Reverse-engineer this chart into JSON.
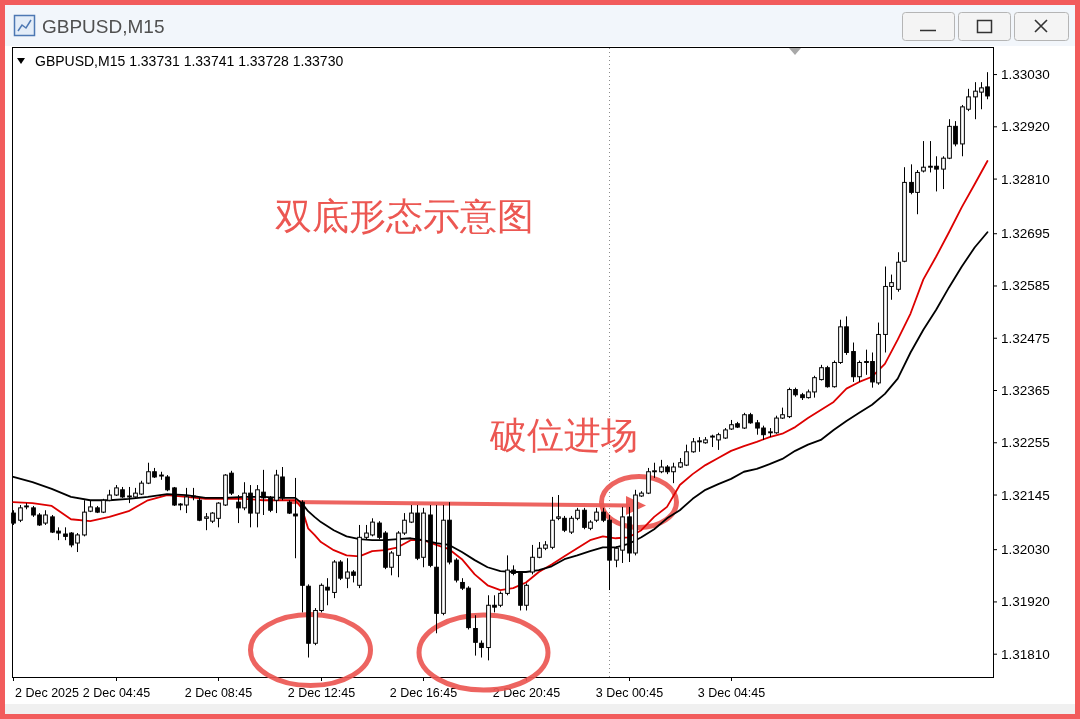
{
  "chart_data": {
    "type": "candlestick",
    "title": "GBPUSD,M15",
    "subtitle": "GBPUSD,M15 1.33731 1.33741 1.33728 1.33730",
    "annotations": [
      "双底形态示意图",
      "破位进场",
      "2 Dec 2025"
    ],
    "x": [
      "2025-12-02T00:45",
      "2025-12-02T01:00",
      "2025-12-02T01:15",
      "2025-12-02T01:30",
      "2025-12-02T01:45",
      "2025-12-02T02:00",
      "2025-12-02T02:15",
      "2025-12-02T02:30",
      "2025-12-02T02:45",
      "2025-12-02T03:00",
      "2025-12-02T03:15",
      "2025-12-02T03:30",
      "2025-12-02T03:45",
      "2025-12-02T04:00",
      "2025-12-02T04:15",
      "2025-12-02T04:30",
      "2025-12-02T04:45",
      "2025-12-02T05:00",
      "2025-12-02T05:15",
      "2025-12-02T05:30",
      "2025-12-02T05:45",
      "2025-12-02T06:00",
      "2025-12-02T06:15",
      "2025-12-02T06:30",
      "2025-12-02T06:45",
      "2025-12-02T07:00",
      "2025-12-02T07:15",
      "2025-12-02T07:30",
      "2025-12-02T07:45",
      "2025-12-02T08:00",
      "2025-12-02T08:15",
      "2025-12-02T08:30",
      "2025-12-02T08:45",
      "2025-12-02T09:00",
      "2025-12-02T09:15",
      "2025-12-02T09:30",
      "2025-12-02T09:45",
      "2025-12-02T10:00",
      "2025-12-02T10:15",
      "2025-12-02T10:30",
      "2025-12-02T10:45",
      "2025-12-02T11:00",
      "2025-12-02T11:15",
      "2025-12-02T11:30",
      "2025-12-02T11:45",
      "2025-12-02T12:00",
      "2025-12-02T12:15",
      "2025-12-02T12:30",
      "2025-12-02T12:45",
      "2025-12-02T13:00",
      "2025-12-02T13:15",
      "2025-12-02T13:30",
      "2025-12-02T13:45",
      "2025-12-02T14:00",
      "2025-12-02T14:15",
      "2025-12-02T14:30",
      "2025-12-02T14:45",
      "2025-12-02T15:00",
      "2025-12-02T15:15",
      "2025-12-02T15:30",
      "2025-12-02T15:45",
      "2025-12-02T16:00",
      "2025-12-02T16:15",
      "2025-12-02T16:30",
      "2025-12-02T16:45",
      "2025-12-02T17:00",
      "2025-12-02T17:15",
      "2025-12-02T17:30",
      "2025-12-02T17:45",
      "2025-12-02T18:00",
      "2025-12-02T18:15",
      "2025-12-02T18:30",
      "2025-12-02T18:45",
      "2025-12-02T19:00",
      "2025-12-02T19:15",
      "2025-12-02T19:30",
      "2025-12-02T19:45",
      "2025-12-02T20:00",
      "2025-12-02T20:15",
      "2025-12-02T20:30",
      "2025-12-02T20:45",
      "2025-12-02T21:00",
      "2025-12-02T21:15",
      "2025-12-02T21:30",
      "2025-12-02T21:45",
      "2025-12-02T22:00",
      "2025-12-02T22:15",
      "2025-12-02T22:30",
      "2025-12-02T22:45",
      "2025-12-02T23:00",
      "2025-12-02T23:15",
      "2025-12-02T23:30",
      "2025-12-02T23:45",
      "2025-12-03T00:00",
      "2025-12-03T00:15",
      "2025-12-03T00:30",
      "2025-12-03T00:45",
      "2025-12-03T01:00",
      "2025-12-03T01:15",
      "2025-12-03T01:30",
      "2025-12-03T01:45",
      "2025-12-03T02:00",
      "2025-12-03T02:15",
      "2025-12-03T02:30",
      "2025-12-03T02:45",
      "2025-12-03T03:00",
      "2025-12-03T03:15",
      "2025-12-03T03:30",
      "2025-12-03T03:45",
      "2025-12-03T04:00",
      "2025-12-03T04:15",
      "2025-12-03T04:30",
      "2025-12-03T04:45",
      "2025-12-03T05:00",
      "2025-12-03T05:15",
      "2025-12-03T05:30",
      "2025-12-03T05:45",
      "2025-12-03T06:00",
      "2025-12-03T06:15",
      "2025-12-03T06:30",
      "2025-12-03T06:45",
      "2025-12-03T07:00",
      "2025-12-03T07:15",
      "2025-12-03T07:30",
      "2025-12-03T07:45",
      "2025-12-03T08:00",
      "2025-12-03T08:15",
      "2025-12-03T08:30",
      "2025-12-03T08:45",
      "2025-12-03T09:00",
      "2025-12-03T09:15",
      "2025-12-03T09:30",
      "2025-12-03T09:45",
      "2025-12-03T10:00",
      "2025-12-03T10:15",
      "2025-12-03T10:30",
      "2025-12-03T10:45",
      "2025-12-03T11:00",
      "2025-12-03T11:15",
      "2025-12-03T11:30",
      "2025-12-03T11:45",
      "2025-12-03T12:00",
      "2025-12-03T12:15",
      "2025-12-03T12:30",
      "2025-12-03T12:45",
      "2025-12-03T13:00",
      "2025-12-03T13:15",
      "2025-12-03T13:30",
      "2025-12-03T13:45",
      "2025-12-03T14:00",
      "2025-12-03T14:15",
      "2025-12-03T14:30",
      "2025-12-03T14:45"
    ],
    "ohlc": [
      [
        1.32107,
        1.32113,
        1.32082,
        1.32086
      ],
      [
        1.32092,
        1.32124,
        1.32088,
        1.32118
      ],
      [
        1.3212,
        1.32128,
        1.32115,
        1.32122
      ],
      [
        1.32118,
        1.32122,
        1.32099,
        1.32103
      ],
      [
        1.32103,
        1.32107,
        1.3208,
        1.32082
      ],
      [
        1.32086,
        1.32113,
        1.32082,
        1.32103
      ],
      [
        1.32099,
        1.32103,
        1.32065,
        1.32067
      ],
      [
        1.32069,
        1.32077,
        1.3205,
        1.32065
      ],
      [
        1.32063,
        1.32077,
        1.3205,
        1.32058
      ],
      [
        1.32065,
        1.32067,
        1.32035,
        1.3204
      ],
      [
        1.32044,
        1.32065,
        1.32025,
        1.32061
      ],
      [
        1.32061,
        1.32134,
        1.32058,
        1.32109
      ],
      [
        1.32111,
        1.32134,
        1.32109,
        1.3212
      ],
      [
        1.32118,
        1.32122,
        1.32107,
        1.32109
      ],
      [
        1.32109,
        1.32137,
        1.32107,
        1.32134
      ],
      [
        1.32134,
        1.32156,
        1.32132,
        1.32145
      ],
      [
        1.32145,
        1.32166,
        1.32143,
        1.3216
      ],
      [
        1.32156,
        1.32162,
        1.32139,
        1.32141
      ],
      [
        1.32141,
        1.32162,
        1.32128,
        1.32143
      ],
      [
        1.32141,
        1.3216,
        1.32137,
        1.32149
      ],
      [
        1.32147,
        1.32175,
        1.32145,
        1.3217
      ],
      [
        1.3217,
        1.32213,
        1.32168,
        1.32194
      ],
      [
        1.32194,
        1.32202,
        1.32181,
        1.32183
      ],
      [
        1.32185,
        1.32194,
        1.32177,
        1.32187
      ],
      [
        1.32183,
        1.32187,
        1.32153,
        1.32156
      ],
      [
        1.3216,
        1.32162,
        1.32122,
        1.32124
      ],
      [
        1.32124,
        1.32128,
        1.32113,
        1.32126
      ],
      [
        1.32124,
        1.3216,
        1.32107,
        1.32141
      ],
      [
        1.32141,
        1.3216,
        1.32134,
        1.32143
      ],
      [
        1.32134,
        1.32139,
        1.3209,
        1.32092
      ],
      [
        1.32096,
        1.32107,
        1.32071,
        1.32099
      ],
      [
        1.3209,
        1.32109,
        1.32086,
        1.32107
      ],
      [
        1.32096,
        1.3213,
        1.32077,
        1.32128
      ],
      [
        1.32124,
        1.32189,
        1.32122,
        1.32187
      ],
      [
        1.32191,
        1.32196,
        1.32145,
        1.32149
      ],
      [
        1.3213,
        1.32145,
        1.32086,
        1.32118
      ],
      [
        1.32118,
        1.32172,
        1.32113,
        1.32149
      ],
      [
        1.32149,
        1.32166,
        1.32077,
        1.32107
      ],
      [
        1.32107,
        1.32166,
        1.32077,
        1.32156
      ],
      [
        1.32151,
        1.32198,
        1.32103,
        1.32139
      ],
      [
        1.32139,
        1.32143,
        1.32109,
        1.32113
      ],
      [
        1.32134,
        1.32198,
        1.32107,
        1.32187
      ],
      [
        1.32183,
        1.32204,
        1.32134,
        1.32139
      ],
      [
        1.3213,
        1.32134,
        1.32105,
        1.32107
      ],
      [
        1.32105,
        1.32181,
        1.32012,
        1.32101
      ],
      [
        1.3213,
        1.32134,
        1.31898,
        1.31955
      ],
      [
        1.31953,
        1.31957,
        1.31803,
        1.31833
      ],
      [
        1.31833,
        1.31907,
        1.31829,
        1.31902
      ],
      [
        1.31902,
        1.31959,
        1.31898,
        1.31955
      ],
      [
        1.31951,
        1.3197,
        1.31913,
        1.31945
      ],
      [
        1.3194,
        1.32008,
        1.31928,
        1.32004
      ],
      [
        1.32004,
        1.32008,
        1.31966,
        1.3197
      ],
      [
        1.3197,
        1.32012,
        1.31949,
        1.31983
      ],
      [
        1.31983,
        1.31987,
        1.31961,
        1.31976
      ],
      [
        1.31955,
        1.32082,
        1.31949,
        1.32056
      ],
      [
        1.32056,
        1.32082,
        1.32052,
        1.32065
      ],
      [
        1.32061,
        1.32096,
        1.32058,
        1.32088
      ],
      [
        1.32086,
        1.3209,
        1.32052,
        1.32056
      ],
      [
        1.32065,
        1.32069,
        1.31989,
        1.31993
      ],
      [
        1.31993,
        1.32027,
        1.31976,
        1.32023
      ],
      [
        1.32018,
        1.32069,
        1.31972,
        1.32065
      ],
      [
        1.32065,
        1.32107,
        1.32061,
        1.32092
      ],
      [
        1.32088,
        1.32124,
        1.32086,
        1.32107
      ],
      [
        1.32107,
        1.32124,
        1.32008,
        1.32012
      ],
      [
        1.32014,
        1.32118,
        1.31993,
        1.32107
      ],
      [
        1.32103,
        1.32124,
        1.31993,
        1.31997
      ],
      [
        1.31993,
        1.32124,
        1.31854,
        1.31896
      ],
      [
        1.31896,
        1.32124,
        1.31892,
        1.32092
      ],
      [
        1.32092,
        1.3213,
        1.31999,
        1.32004
      ],
      [
        1.32008,
        1.32012,
        1.31961,
        1.31966
      ],
      [
        1.31961,
        1.3197,
        1.31945,
        1.31949
      ],
      [
        1.31949,
        1.31953,
        1.31862,
        1.31866
      ],
      [
        1.31864,
        1.31892,
        1.31807,
        1.31835
      ],
      [
        1.31833,
        1.31839,
        1.31803,
        1.31824
      ],
      [
        1.31824,
        1.31934,
        1.31797,
        1.31913
      ],
      [
        1.31913,
        1.31934,
        1.31898,
        1.31909
      ],
      [
        1.31913,
        1.31942,
        1.31909,
        1.31938
      ],
      [
        1.31938,
        1.32018,
        1.31934,
        1.31987
      ],
      [
        1.31987,
        1.31997,
        1.31976,
        1.3198
      ],
      [
        1.3198,
        1.31985,
        1.31902,
        1.31913
      ],
      [
        1.31913,
        1.31959,
        1.31902,
        1.31955
      ],
      [
        1.31983,
        1.3204,
        1.31978,
        1.32014
      ],
      [
        1.32014,
        1.32046,
        1.32012,
        1.32033
      ],
      [
        1.32033,
        1.32048,
        1.32029,
        1.3204
      ],
      [
        1.32035,
        1.32141,
        1.32031,
        1.32092
      ],
      [
        1.32096,
        1.32145,
        1.32092,
        1.32099
      ],
      [
        1.32096,
        1.32101,
        1.32067,
        1.32071
      ],
      [
        1.32067,
        1.32101,
        1.32063,
        1.32096
      ],
      [
        1.32096,
        1.32118,
        1.32092,
        1.32113
      ],
      [
        1.32113,
        1.32118,
        1.32073,
        1.32077
      ],
      [
        1.32075,
        1.32092,
        1.32071,
        1.32088
      ],
      [
        1.32092,
        1.32118,
        1.32088,
        1.32109
      ],
      [
        1.32109,
        1.32118,
        1.32088,
        1.32092
      ],
      [
        1.32092,
        1.32103,
        1.31945,
        1.32008
      ],
      [
        1.32008,
        1.32037,
        1.31993,
        1.32033
      ],
      [
        1.32029,
        1.3212,
        1.32002,
        1.32099
      ],
      [
        1.32099,
        1.3212,
        1.32004,
        1.32023
      ],
      [
        1.32023,
        1.32156,
        1.32018,
        1.32145
      ],
      [
        1.32143,
        1.32153,
        1.32141,
        1.32149
      ],
      [
        1.32149,
        1.32202,
        1.32147,
        1.32194
      ],
      [
        1.32194,
        1.32213,
        1.32181,
        1.32196
      ],
      [
        1.32194,
        1.32219,
        1.32191,
        1.32204
      ],
      [
        1.32204,
        1.32208,
        1.32189,
        1.32194
      ],
      [
        1.32194,
        1.32213,
        1.3217,
        1.32204
      ],
      [
        1.32204,
        1.32223,
        1.32202,
        1.32213
      ],
      [
        1.32208,
        1.32251,
        1.32206,
        1.32236
      ],
      [
        1.32236,
        1.32265,
        1.32234,
        1.32257
      ],
      [
        1.32257,
        1.32267,
        1.32236,
        1.32259
      ],
      [
        1.32255,
        1.32267,
        1.32253,
        1.32261
      ],
      [
        1.32267,
        1.32272,
        1.32246,
        1.32269
      ],
      [
        1.32261,
        1.32276,
        1.3224,
        1.32272
      ],
      [
        1.32265,
        1.32286,
        1.32263,
        1.32282
      ],
      [
        1.32284,
        1.32303,
        1.32282,
        1.32293
      ],
      [
        1.32295,
        1.32299,
        1.32286,
        1.32288
      ],
      [
        1.32286,
        1.32318,
        1.32284,
        1.32314
      ],
      [
        1.32314,
        1.32318,
        1.32295,
        1.32297
      ],
      [
        1.32297,
        1.32303,
        1.32272,
        1.32286
      ],
      [
        1.32286,
        1.32291,
        1.32261,
        1.32272
      ],
      [
        1.32276,
        1.32286,
        1.32267,
        1.32278
      ],
      [
        1.32276,
        1.32312,
        1.32274,
        1.32307
      ],
      [
        1.32307,
        1.32329,
        1.32305,
        1.32314
      ],
      [
        1.3231,
        1.32371,
        1.32307,
        1.32367
      ],
      [
        1.32367,
        1.32371,
        1.32352,
        1.32356
      ],
      [
        1.32356,
        1.3236,
        1.32345,
        1.3235
      ],
      [
        1.3235,
        1.32367,
        1.32348,
        1.32362
      ],
      [
        1.32362,
        1.32396,
        1.3235,
        1.32392
      ],
      [
        1.32388,
        1.32419,
        1.32386,
        1.32413
      ],
      [
        1.32413,
        1.32417,
        1.32371,
        1.32373
      ],
      [
        1.32373,
        1.32428,
        1.32371,
        1.32424
      ],
      [
        1.32424,
        1.32514,
        1.32421,
        1.32499
      ],
      [
        1.32499,
        1.32521,
        1.3244,
        1.32445
      ],
      [
        1.32447,
        1.32466,
        1.32383,
        1.32394
      ],
      [
        1.32394,
        1.32428,
        1.32383,
        1.32424
      ],
      [
        1.32424,
        1.32451,
        1.32398,
        1.32426
      ],
      [
        1.32426,
        1.32445,
        1.32371,
        1.32383
      ],
      [
        1.32381,
        1.32508,
        1.32377,
        1.32483
      ],
      [
        1.32483,
        1.32626,
        1.32445,
        1.32584
      ],
      [
        1.32584,
        1.32609,
        1.32556,
        1.32592
      ],
      [
        1.32578,
        1.32656,
        1.32573,
        1.32635
      ],
      [
        1.32637,
        1.32835,
        1.32635,
        1.32803
      ],
      [
        1.32803,
        1.32841,
        1.32778,
        1.32782
      ],
      [
        1.32782,
        1.32829,
        1.32736,
        1.32824
      ],
      [
        1.32827,
        1.3289,
        1.32824,
        1.32835
      ],
      [
        1.32835,
        1.3289,
        1.32824,
        1.32837
      ],
      [
        1.32837,
        1.32858,
        1.32784,
        1.32831
      ],
      [
        1.32831,
        1.32858,
        1.32789,
        1.32854
      ],
      [
        1.32854,
        1.32936,
        1.32852,
        1.32921
      ],
      [
        1.32921,
        1.32932,
        1.32879,
        1.32884
      ],
      [
        1.32884,
        1.32966,
        1.32858,
        1.32962
      ],
      [
        1.32957,
        1.33,
        1.32953,
        1.32983
      ],
      [
        1.32983,
        1.33014,
        1.32936,
        1.32995
      ],
      [
        1.32993,
        1.33014,
        1.32957,
        1.33002
      ],
      [
        1.33004,
        1.33035,
        1.32978,
        1.32985
      ]
    ],
    "series": [
      {
        "type": "line",
        "color": "#dd0000",
        "x": [
          "2025-12-02T00:45",
          "2025-12-02T01:30",
          "2025-12-02T02:15",
          "2025-12-02T03:00",
          "2025-12-02T03:45",
          "2025-12-02T04:30",
          "2025-12-02T05:15",
          "2025-12-02T06:00",
          "2025-12-02T06:45",
          "2025-12-02T07:30",
          "2025-12-02T08:15",
          "2025-12-02T09:00",
          "2025-12-02T09:45",
          "2025-12-02T10:30",
          "2025-12-02T11:15",
          "2025-12-02T11:45",
          "2025-12-02T12:00",
          "2025-12-02T12:15",
          "2025-12-02T12:30",
          "2025-12-02T12:45",
          "2025-12-02T13:15",
          "2025-12-02T13:45",
          "2025-12-02T14:15",
          "2025-12-02T14:45",
          "2025-12-02T15:15",
          "2025-12-02T15:45",
          "2025-12-02T16:15",
          "2025-12-02T16:45",
          "2025-12-02T17:15",
          "2025-12-02T17:45",
          "2025-12-02T18:15",
          "2025-12-02T18:45",
          "2025-12-02T19:15",
          "2025-12-02T19:45",
          "2025-12-02T20:15",
          "2025-12-02T20:45",
          "2025-12-02T21:15",
          "2025-12-02T21:45",
          "2025-12-02T22:15",
          "2025-12-02T22:45",
          "2025-12-02T23:15",
          "2025-12-02T23:45",
          "2025-12-03T00:15",
          "2025-12-03T00:45",
          "2025-12-03T01:15",
          "2025-12-03T01:45",
          "2025-12-03T02:15",
          "2025-12-03T02:45",
          "2025-12-03T03:15",
          "2025-12-03T03:45",
          "2025-12-03T04:15",
          "2025-12-03T04:45",
          "2025-12-03T05:15",
          "2025-12-03T05:45",
          "2025-12-03T06:15",
          "2025-12-03T06:45",
          "2025-12-03T07:15",
          "2025-12-03T07:45",
          "2025-12-03T08:15",
          "2025-12-03T08:45",
          "2025-12-03T09:15",
          "2025-12-03T09:45",
          "2025-12-03T10:15",
          "2025-12-03T10:45",
          "2025-12-03T11:15",
          "2025-12-03T11:45",
          "2025-12-03T12:15",
          "2025-12-03T12:45",
          "2025-12-03T13:15",
          "2025-12-03T13:45",
          "2025-12-03T14:15",
          "2025-12-03T14:45"
        ],
        "values": [
          1.3213,
          1.32128,
          1.32122,
          1.32094,
          1.3209,
          1.32099,
          1.32111,
          1.32134,
          1.32145,
          1.32141,
          1.32137,
          1.32137,
          1.32137,
          1.32134,
          1.32134,
          1.32134,
          1.32118,
          1.32075,
          1.32061,
          1.32046,
          1.32029,
          1.32018,
          1.32016,
          1.32027,
          1.32029,
          1.32035,
          1.3205,
          1.3205,
          1.3204,
          1.32031,
          1.3201,
          1.31978,
          1.31955,
          1.31945,
          1.31949,
          1.31961,
          1.31983,
          1.31999,
          1.32016,
          1.32033,
          1.3205,
          1.32058,
          1.32054,
          1.32056,
          1.32071,
          1.32099,
          1.3212,
          1.32166,
          1.32189,
          1.32208,
          1.32223,
          1.32238,
          1.32248,
          1.32257,
          1.32267,
          1.32274,
          1.32288,
          1.32307,
          1.32324,
          1.32341,
          1.32369,
          1.32383,
          1.32394,
          1.32421,
          1.32472,
          1.32527,
          1.32599,
          1.32647,
          1.32698,
          1.32751,
          1.32799,
          1.32848
        ]
      },
      {
        "type": "line",
        "color": "#000000",
        "x": [
          "2025-12-02T00:45",
          "2025-12-02T01:30",
          "2025-12-02T02:15",
          "2025-12-02T03:00",
          "2025-12-02T03:45",
          "2025-12-02T04:30",
          "2025-12-02T05:15",
          "2025-12-02T06:00",
          "2025-12-02T06:45",
          "2025-12-02T07:30",
          "2025-12-02T08:15",
          "2025-12-02T09:00",
          "2025-12-02T09:45",
          "2025-12-02T10:30",
          "2025-12-02T11:15",
          "2025-12-02T11:45",
          "2025-12-02T12:00",
          "2025-12-02T12:15",
          "2025-12-02T12:30",
          "2025-12-02T12:45",
          "2025-12-02T13:15",
          "2025-12-02T13:45",
          "2025-12-02T14:15",
          "2025-12-02T14:45",
          "2025-12-02T15:15",
          "2025-12-02T15:45",
          "2025-12-02T16:15",
          "2025-12-02T16:45",
          "2025-12-02T17:15",
          "2025-12-02T17:45",
          "2025-12-02T18:15",
          "2025-12-02T18:45",
          "2025-12-02T19:15",
          "2025-12-02T19:45",
          "2025-12-02T20:15",
          "2025-12-02T20:45",
          "2025-12-02T21:15",
          "2025-12-02T21:45",
          "2025-12-02T22:15",
          "2025-12-02T22:45",
          "2025-12-02T23:15",
          "2025-12-02T23:45",
          "2025-12-03T00:15",
          "2025-12-03T00:45",
          "2025-12-03T01:15",
          "2025-12-03T01:45",
          "2025-12-03T02:15",
          "2025-12-03T02:45",
          "2025-12-03T03:15",
          "2025-12-03T03:45",
          "2025-12-03T04:15",
          "2025-12-03T04:45",
          "2025-12-03T05:15",
          "2025-12-03T05:45",
          "2025-12-03T06:15",
          "2025-12-03T06:45",
          "2025-12-03T07:15",
          "2025-12-03T07:45",
          "2025-12-03T08:15",
          "2025-12-03T08:45",
          "2025-12-03T09:15",
          "2025-12-03T09:45",
          "2025-12-03T10:15",
          "2025-12-03T10:45",
          "2025-12-03T11:15",
          "2025-12-03T11:45",
          "2025-12-03T12:15",
          "2025-12-03T12:45",
          "2025-12-03T13:15",
          "2025-12-03T13:45",
          "2025-12-03T14:15",
          "2025-12-03T14:45"
        ],
        "values": [
          1.32183,
          1.32172,
          1.32158,
          1.32141,
          1.32134,
          1.32134,
          1.32137,
          1.32141,
          1.32147,
          1.32145,
          1.32139,
          1.32139,
          1.32141,
          1.32141,
          1.32139,
          1.32139,
          1.32128,
          1.32111,
          1.32099,
          1.32088,
          1.32071,
          1.32058,
          1.32052,
          1.3205,
          1.3205,
          1.32052,
          1.32054,
          1.3205,
          1.32044,
          1.3204,
          1.32025,
          1.32008,
          1.31993,
          1.31985,
          1.31983,
          1.31983,
          1.31987,
          1.31995,
          1.3201,
          1.32018,
          1.32027,
          1.32035,
          1.32035,
          1.32042,
          1.32056,
          1.32073,
          1.32096,
          1.32113,
          1.32137,
          1.32156,
          1.32168,
          1.32179,
          1.32194,
          1.322,
          1.3221,
          1.32221,
          1.32238,
          1.32251,
          1.32261,
          1.32282,
          1.32301,
          1.32318,
          1.32335,
          1.32358,
          1.3239,
          1.32445,
          1.32493,
          1.32535,
          1.32582,
          1.32626,
          1.32666,
          1.32698
        ]
      }
    ],
    "xlim": [
      "2025-12-02T00:42",
      "2025-12-03T14:58"
    ],
    "ylim": [
      1.31762,
      1.33088
    ],
    "xticks": [
      {
        "value": "2025-12-02T00:45",
        "label": null
      },
      {
        "value": "2025-12-02T04:45",
        "label": "2 Dec 04:45"
      },
      {
        "value": "2025-12-02T08:45",
        "label": "2 Dec 08:45"
      },
      {
        "value": "2025-12-02T12:45",
        "label": "2 Dec 12:45"
      },
      {
        "value": "2025-12-02T16:45",
        "label": "2 Dec 16:45"
      },
      {
        "value": "2025-12-02T20:45",
        "label": "2 Dec 20:45"
      },
      {
        "value": "2025-12-03T00:45",
        "label": "3 Dec 00:45"
      },
      {
        "value": "2025-12-03T04:45",
        "label": "3 Dec 04:45"
      }
    ],
    "yticks": [
      {
        "value": 1.3303,
        "label": "1.33030"
      },
      {
        "value": 1.3292,
        "label": "1.32920"
      },
      {
        "value": 1.3281,
        "label": "1.32810"
      },
      1.32695,
      1.32585,
      1.32475,
      1.32365,
      1.32255,
      1.32145,
      {
        "value": 1.3203,
        "label": "1.32030"
      },
      {
        "value": 1.3192,
        "label": "1.31920"
      },
      {
        "value": 1.3181,
        "label": "1.31810"
      }
    ],
    "ref_lines": [
      {
        "axis": "x",
        "value": "2025-12-03T00:00",
        "color": "#8c8c8c",
        "line_style": "dotted"
      }
    ]
  }
}
